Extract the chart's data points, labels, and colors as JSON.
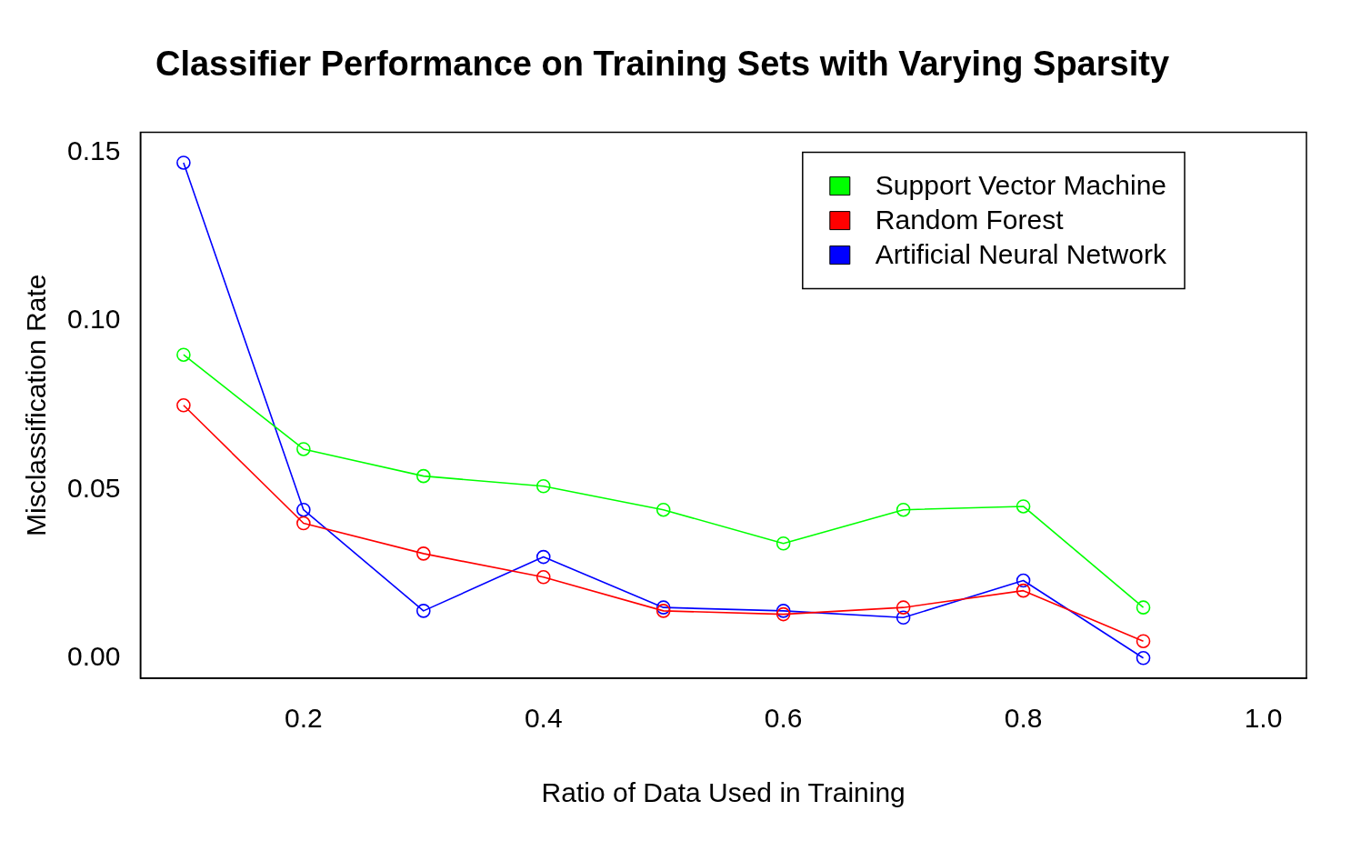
{
  "chart_data": {
    "type": "line",
    "title": "Classifier Performance on Training Sets with Varying Sparsity",
    "xlabel": "Ratio of Data Used in Training",
    "ylabel": "Misclassification Rate",
    "x": [
      0.1,
      0.2,
      0.3,
      0.4,
      0.5,
      0.6,
      0.7,
      0.8,
      0.9
    ],
    "series": [
      {
        "name": "Support Vector Machine",
        "color": "#00ff00",
        "values": [
          0.09,
          0.062,
          0.054,
          0.051,
          0.044,
          0.034,
          0.044,
          0.045,
          0.015
        ]
      },
      {
        "name": "Random Forest",
        "color": "#ff0000",
        "values": [
          0.075,
          0.04,
          0.031,
          0.024,
          0.014,
          0.013,
          0.015,
          0.02,
          0.005
        ]
      },
      {
        "name": "Artificial Neural Network",
        "color": "#0000ff",
        "values": [
          0.147,
          0.044,
          0.014,
          0.03,
          0.015,
          0.014,
          0.012,
          0.023,
          0.0
        ]
      }
    ],
    "xlim": [
      0.064,
      1.036
    ],
    "xticks": [
      0.2,
      0.4,
      0.6,
      0.8,
      {
        "value": 1.0,
        "label": "1.0"
      }
    ],
    "ylim": [
      -0.006,
      0.156
    ],
    "yticks": [
      {
        "value": 0,
        "label": "0.00"
      },
      {
        "value": 0.05,
        "label": "0.05"
      },
      {
        "value": 0.1,
        "label": "0.10"
      },
      {
        "value": 0.15,
        "label": "0.15"
      }
    ],
    "grid": false,
    "legend": "top right",
    "marker": "circle",
    "line_style": "solid"
  }
}
